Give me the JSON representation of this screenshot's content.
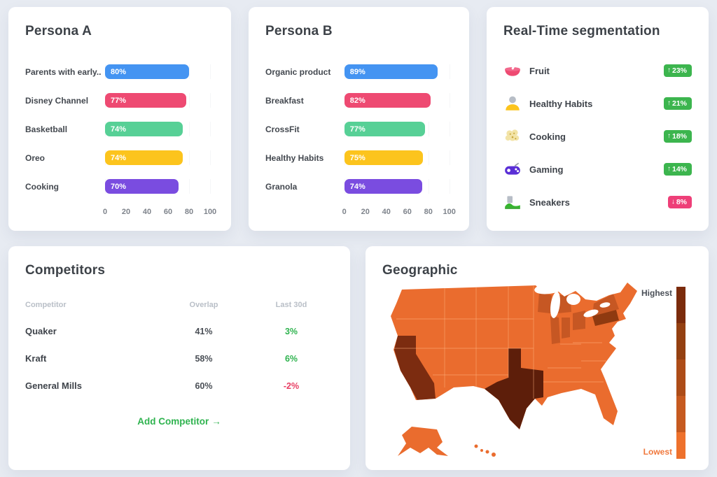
{
  "page": {
    "background": "#e7ebf2"
  },
  "persona_a": {
    "title": "Persona A",
    "chart": {
      "type": "bar",
      "orientation": "horizontal",
      "xlim": [
        0,
        100
      ],
      "ticks": [
        "0",
        "20",
        "40",
        "60",
        "80",
        "100"
      ],
      "bars": [
        {
          "label": "Parents with early...",
          "value": 80,
          "display": "80%",
          "color": "#4494f2"
        },
        {
          "label": "Disney Channel",
          "value": 77,
          "display": "77%",
          "color": "#ee4a72"
        },
        {
          "label": "Basketball",
          "value": 74,
          "display": "74%",
          "color": "#57d096"
        },
        {
          "label": "Oreo",
          "value": 74,
          "display": "74%",
          "color": "#fcc41d"
        },
        {
          "label": "Cooking",
          "value": 70,
          "display": "70%",
          "color": "#7a4ce0"
        }
      ]
    }
  },
  "persona_b": {
    "title": "Persona B",
    "chart": {
      "type": "bar",
      "orientation": "horizontal",
      "xlim": [
        0,
        100
      ],
      "ticks": [
        "0",
        "20",
        "40",
        "60",
        "80",
        "100"
      ],
      "bars": [
        {
          "label": "Organic product",
          "value": 89,
          "display": "89%",
          "color": "#4494f2"
        },
        {
          "label": "Breakfast",
          "value": 82,
          "display": "82%",
          "color": "#ee4a72"
        },
        {
          "label": "CrossFit",
          "value": 77,
          "display": "77%",
          "color": "#57d096"
        },
        {
          "label": "Healthy Habits",
          "value": 75,
          "display": "75%",
          "color": "#fcc41d"
        },
        {
          "label": "Granola",
          "value": 74,
          "display": "74%",
          "color": "#7a4ce0"
        }
      ]
    }
  },
  "segmentation": {
    "title": "Real-Time segmentation",
    "arrow_up": "↑",
    "arrow_down": "↓",
    "badge_colors": {
      "up": "#3cb54e",
      "down": "#ee3f78"
    },
    "items": [
      {
        "label": "Fruit",
        "icon": "bowl-icon",
        "change": "23%",
        "direction": "up"
      },
      {
        "label": "Healthy Habits",
        "icon": "person-icon",
        "change": "21%",
        "direction": "up"
      },
      {
        "label": "Cooking",
        "icon": "popcorn-icon",
        "change": "18%",
        "direction": "up"
      },
      {
        "label": "Gaming",
        "icon": "gamepad-icon",
        "change": "14%",
        "direction": "up"
      },
      {
        "label": "Sneakers",
        "icon": "sneaker-icon",
        "change": "8%",
        "direction": "down"
      }
    ]
  },
  "competitors": {
    "title": "Competitors",
    "columns": [
      "Competitor",
      "Overlap",
      "Last 30d"
    ],
    "rows": [
      {
        "name": "Quaker",
        "overlap": "41%",
        "last30d": "3%",
        "trend": "up"
      },
      {
        "name": "Kraft",
        "overlap": "58%",
        "last30d": "6%",
        "trend": "up"
      },
      {
        "name": "General Mills",
        "overlap": "60%",
        "last30d": "-2%",
        "trend": "down"
      }
    ],
    "trend_colors": {
      "up": "#2fb34f",
      "down": "#e83e63"
    },
    "add_label": "Add Competitor",
    "add_arrow": "→",
    "add_color": "#2fb34f"
  },
  "geographic": {
    "title": "Geographic",
    "legend": {
      "high_label": "Highest",
      "low_label": "Lowest"
    },
    "palette": {
      "base": "#ea6c2e",
      "mid": "#c65723",
      "dark": "#8f3a10",
      "darker": "#7c2c10",
      "darkest": "#5d1e0a",
      "legend_steps": [
        "#7b2b0c",
        "#944011",
        "#ad4c18",
        "#c65a20",
        "#ee712c"
      ]
    },
    "state_levels": {
      "highest": [
        "Texas"
      ],
      "high": [
        "California",
        "Pennsylvania"
      ],
      "medium": [
        "New York",
        "Wisconsin",
        "Michigan",
        "Illinois",
        "Indiana",
        "Ohio"
      ],
      "low": "all remaining states"
    }
  },
  "chart_data": [
    {
      "type": "bar",
      "title": "Persona A",
      "orientation": "horizontal",
      "categories": [
        "Parents with early...",
        "Disney Channel",
        "Basketball",
        "Oreo",
        "Cooking"
      ],
      "values": [
        80,
        77,
        74,
        74,
        70
      ],
      "xlim": [
        0,
        100
      ],
      "ticks": [
        0,
        20,
        40,
        60,
        80,
        100
      ],
      "bar_colors": [
        "#4494f2",
        "#ee4a72",
        "#57d096",
        "#fcc41d",
        "#7a4ce0"
      ]
    },
    {
      "type": "bar",
      "title": "Persona B",
      "orientation": "horizontal",
      "categories": [
        "Organic product",
        "Breakfast",
        "CrossFit",
        "Healthy Habits",
        "Granola"
      ],
      "values": [
        89,
        82,
        77,
        75,
        74
      ],
      "xlim": [
        0,
        100
      ],
      "ticks": [
        0,
        20,
        40,
        60,
        80,
        100
      ],
      "bar_colors": [
        "#4494f2",
        "#ee4a72",
        "#57d096",
        "#fcc41d",
        "#7a4ce0"
      ]
    },
    {
      "type": "table",
      "title": "Real-Time segmentation",
      "rows": [
        [
          "Fruit",
          "+23%"
        ],
        [
          "Healthy Habits",
          "+21%"
        ],
        [
          "Cooking",
          "+18%"
        ],
        [
          "Gaming",
          "+14%"
        ],
        [
          "Sneakers",
          "-8%"
        ]
      ]
    },
    {
      "type": "table",
      "title": "Competitors",
      "columns": [
        "Competitor",
        "Overlap",
        "Last 30d"
      ],
      "rows": [
        [
          "Quaker",
          "41%",
          "3%"
        ],
        [
          "Kraft",
          "58%",
          "6%"
        ],
        [
          "General Mills",
          "60%",
          "-2%"
        ]
      ]
    },
    {
      "type": "heatmap",
      "subtype": "us-choropleth",
      "title": "Geographic",
      "legend": [
        "Highest",
        "Lowest"
      ],
      "highest": [
        "Texas"
      ],
      "high": [
        "California",
        "Pennsylvania"
      ],
      "medium": [
        "New York",
        "Wisconsin",
        "Michigan",
        "Illinois",
        "Indiana",
        "Ohio"
      ]
    }
  ]
}
